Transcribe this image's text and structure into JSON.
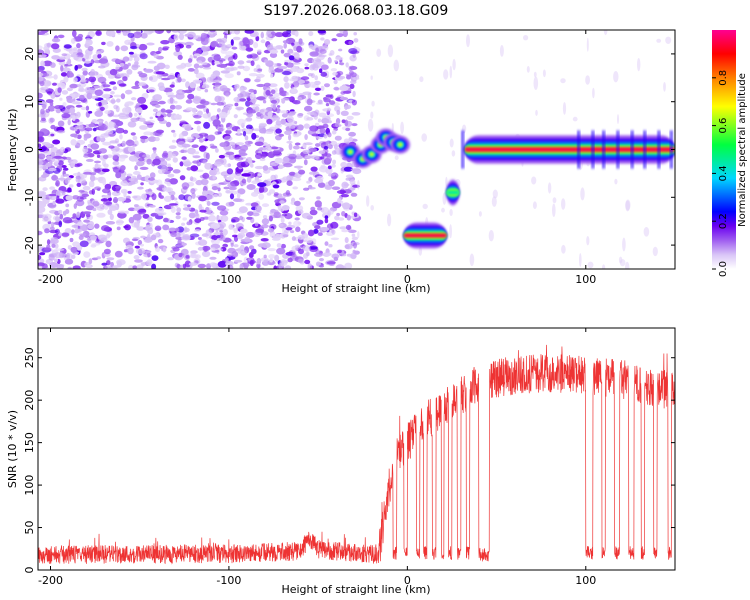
{
  "chart_data": [
    {
      "type": "heatmap",
      "title": "S197.2026.068.03.18.G09",
      "xlabel": "Height of straight line (km)",
      "ylabel": "Frequency (Hz)",
      "xlim": [
        -207,
        150
      ],
      "ylim": [
        -25,
        25
      ],
      "x_ticks": [
        -200,
        -100,
        0,
        100
      ],
      "y_ticks": [
        -20,
        -10,
        0,
        10,
        20
      ],
      "colorbar": {
        "label": "Normalized spectral amplitude",
        "range": [
          0,
          1
        ],
        "ticks": [
          0.0,
          0.2,
          0.4,
          0.6,
          0.8
        ],
        "tick_labels": [
          "0.0",
          "0.2",
          "0.4",
          "0.6",
          "0.8"
        ],
        "colors": [
          "#ffffff",
          "#b88cf0",
          "#7a00f0",
          "#0000ff",
          "#00d8ff",
          "#00ff40",
          "#ffff00",
          "#ff8000",
          "#ff0000",
          "#ff0090"
        ]
      },
      "features": [
        {
          "name": "noise-region",
          "x_range": [
            -207,
            -28
          ],
          "freq_range": [
            -25,
            25
          ],
          "amplitude": 0.05
        },
        {
          "name": "rising-tone",
          "points": [
            [
              -32,
              -0.5
            ],
            [
              -25,
              -2
            ],
            [
              -20,
              -1
            ],
            [
              -15,
              1
            ],
            [
              -12,
              2.5
            ],
            [
              -8,
              1.5
            ],
            [
              -4,
              1
            ]
          ],
          "amplitude": 0.45
        },
        {
          "name": "low-tone",
          "x_range": [
            -2,
            22
          ],
          "freq": -18,
          "amplitude": 0.95
        },
        {
          "name": "mid-tone",
          "x_range": [
            22,
            29
          ],
          "freq": -9,
          "amplitude": 0.45
        },
        {
          "name": "carrier",
          "x_range": [
            32,
            150
          ],
          "freq": 0,
          "amplitude": 0.95
        }
      ]
    },
    {
      "type": "line",
      "xlabel": "Height of straight line (km)",
      "ylabel": "SNR (10 * v/v)",
      "xlim": [
        -207,
        150
      ],
      "ylim": [
        0,
        285
      ],
      "x_ticks": [
        -200,
        -100,
        0,
        100
      ],
      "y_ticks": [
        0,
        50,
        100,
        150,
        200,
        250
      ],
      "line_color": "#ee3333",
      "profile": [
        {
          "x": -207,
          "y": 18
        },
        {
          "x": -100,
          "y": 19
        },
        {
          "x": -60,
          "y": 22
        },
        {
          "x": -55,
          "y": 38
        },
        {
          "x": -50,
          "y": 24
        },
        {
          "x": -16,
          "y": 18
        },
        {
          "x": -10,
          "y": 100
        },
        {
          "x": -5,
          "y": 140
        },
        {
          "x": 0,
          "y": 150
        },
        {
          "x": 10,
          "y": 175
        },
        {
          "x": 20,
          "y": 190
        },
        {
          "x": 30,
          "y": 205
        },
        {
          "x": 40,
          "y": 220
        },
        {
          "x": 60,
          "y": 230
        },
        {
          "x": 80,
          "y": 232
        },
        {
          "x": 100,
          "y": 230
        },
        {
          "x": 120,
          "y": 225
        },
        {
          "x": 140,
          "y": 215
        },
        {
          "x": 150,
          "y": 210
        }
      ],
      "dropouts": [
        {
          "x_range": [
            -8,
            -6
          ],
          "y": 20
        },
        {
          "x_range": [
            -2,
            0
          ],
          "y": 22
        },
        {
          "x_range": [
            5,
            7
          ],
          "y": 20
        },
        {
          "x_range": [
            9,
            11
          ],
          "y": 20
        },
        {
          "x_range": [
            14,
            16
          ],
          "y": 20
        },
        {
          "x_range": [
            19,
            20.5
          ],
          "y": 20
        },
        {
          "x_range": [
            23,
            25
          ],
          "y": 20
        },
        {
          "x_range": [
            28,
            30
          ],
          "y": 20
        },
        {
          "x_range": [
            33,
            35
          ],
          "y": 20
        },
        {
          "x_range": [
            40,
            46
          ],
          "y": 18
        },
        {
          "x_range": [
            100,
            104
          ],
          "y": 20
        },
        {
          "x_range": [
            109,
            111
          ],
          "y": 20
        },
        {
          "x_range": [
            116,
            119
          ],
          "y": 20
        },
        {
          "x_range": [
            124,
            127
          ],
          "y": 20
        },
        {
          "x_range": [
            131,
            133
          ],
          "y": 20
        },
        {
          "x_range": [
            138,
            140
          ],
          "y": 20
        },
        {
          "x_range": [
            146,
            148
          ],
          "y": 20
        }
      ]
    }
  ]
}
